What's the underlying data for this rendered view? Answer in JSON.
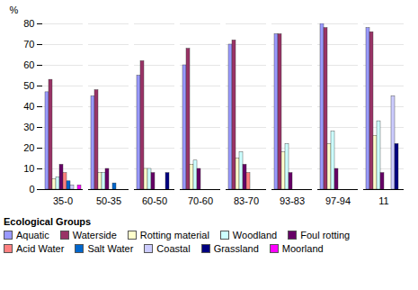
{
  "chart_data": {
    "type": "bar",
    "x_label": null,
    "y_label": "%",
    "legend_title": "Ecological Groups",
    "legend": "bottom",
    "grid": true,
    "categories": [
      "35-0",
      "50-35",
      "60-50",
      "70-60",
      "83-70",
      "93-83",
      "97-94",
      "11"
    ],
    "ylim": [
      0,
      80
    ],
    "yticks": [
      0,
      10,
      20,
      30,
      40,
      50,
      60,
      70,
      80
    ],
    "series": [
      {
        "name": "Aquatic",
        "color": "#9999ff",
        "values": [
          47,
          45,
          55,
          60,
          70,
          75,
          80,
          78
        ]
      },
      {
        "name": "Waterside",
        "color": "#993366",
        "values": [
          53,
          48,
          62,
          68,
          72,
          75,
          78,
          76
        ]
      },
      {
        "name": "Rotting material",
        "color": "#ffffcc",
        "values": [
          5,
          8,
          10,
          12,
          15,
          18,
          22,
          26
        ]
      },
      {
        "name": "Woodland",
        "color": "#ccffff",
        "values": [
          6,
          8,
          10,
          14,
          18,
          22,
          28,
          33
        ]
      },
      {
        "name": "Foul rotting",
        "color": "#660066",
        "values": [
          12,
          10,
          8,
          10,
          12,
          8,
          10,
          8
        ]
      },
      {
        "name": "Acid Water",
        "color": "#ff8080",
        "values": [
          8,
          0,
          0,
          0,
          8,
          0,
          0,
          0
        ]
      },
      {
        "name": "Salt Water",
        "color": "#0066cc",
        "values": [
          4,
          3,
          0,
          0,
          0,
          0,
          0,
          0
        ]
      },
      {
        "name": "Coastal",
        "color": "#ccccff",
        "values": [
          2,
          0,
          0,
          0,
          0,
          0,
          0,
          45
        ]
      },
      {
        "name": "Grassland",
        "color": "#000080",
        "values": [
          0,
          0,
          8,
          0,
          0,
          0,
          0,
          22
        ]
      },
      {
        "name": "Moorland",
        "color": "#ff00ff",
        "values": [
          2,
          0,
          0,
          0,
          0,
          0,
          0,
          0
        ]
      }
    ]
  }
}
